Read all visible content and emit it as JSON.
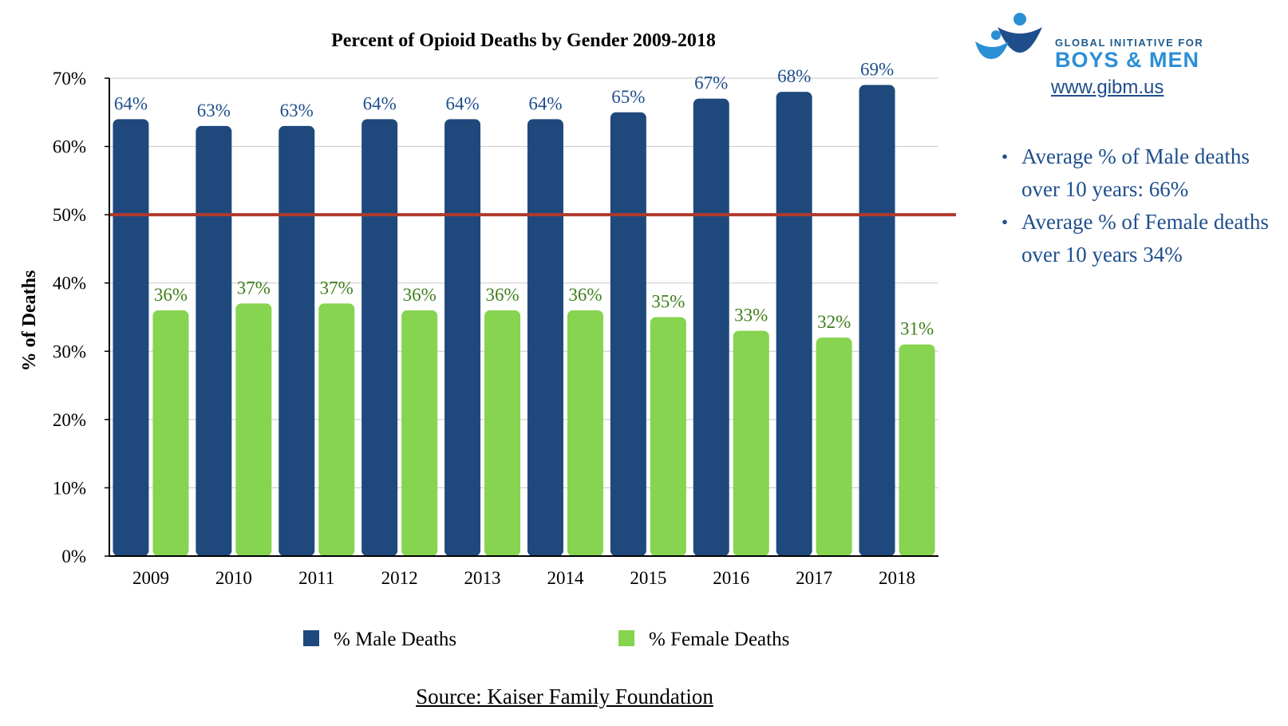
{
  "chart_data": {
    "type": "bar",
    "title": "Percent of Opioid Deaths by Gender 2009-2018",
    "xlabel": "",
    "ylabel": "% of Deaths",
    "categories": [
      "2009",
      "2010",
      "2011",
      "2012",
      "2013",
      "2014",
      "2015",
      "2016",
      "2017",
      "2018"
    ],
    "series": [
      {
        "name": "% Male Deaths",
        "color": "#1f497d",
        "labelColor": "#1f4e8c",
        "values": [
          64,
          63,
          63,
          64,
          64,
          64,
          65,
          67,
          68,
          69
        ],
        "labels": [
          "64%",
          "63%",
          "63%",
          "64%",
          "64%",
          "64%",
          "65%",
          "67%",
          "68%",
          "69%"
        ]
      },
      {
        "name": "% Female Deaths",
        "color": "#86d44f",
        "labelColor": "#3f7f1a",
        "values": [
          36,
          37,
          37,
          36,
          36,
          36,
          35,
          33,
          32,
          31
        ],
        "labels": [
          "36%",
          "37%",
          "37%",
          "36%",
          "36%",
          "36%",
          "35%",
          "33%",
          "32%",
          "31%"
        ]
      }
    ],
    "ylim": [
      0,
      70
    ],
    "yticks": [
      0,
      10,
      20,
      30,
      40,
      50,
      60,
      70
    ],
    "ytick_labels": [
      "0%",
      "10%",
      "20%",
      "30%",
      "40%",
      "50%",
      "60%",
      "70%"
    ],
    "reference_line": {
      "value": 50,
      "color": "#b03a2e"
    },
    "grid": true,
    "legend": "bottom"
  },
  "logo": {
    "line1": "GLOBAL INITIATIVE FOR",
    "line2": "BOYS & MEN",
    "url": "www.gibm.us"
  },
  "notes": [
    "Average % of Male deaths over 10 years: 66%",
    "Average % of Female deaths over 10 years 34%"
  ],
  "source": "Source: Kaiser Family Foundation"
}
